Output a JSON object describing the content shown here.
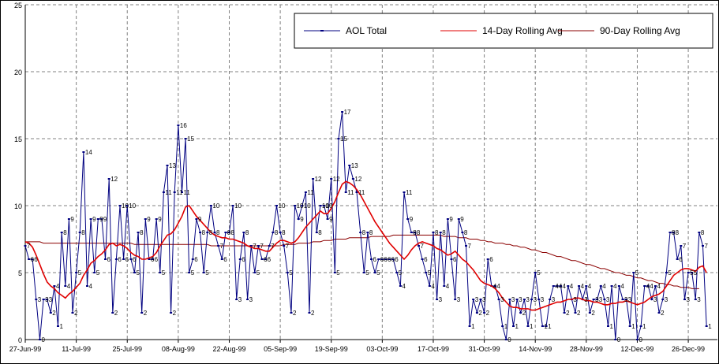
{
  "chart_data": {
    "type": "line",
    "title": "",
    "xlabel": "",
    "ylabel": "",
    "ylim": [
      0,
      25
    ],
    "y_ticks": [
      "0",
      "5",
      "10",
      "15",
      "20",
      "25"
    ],
    "x_ticks": [
      "27-Jun-99",
      "11-Jul-99",
      "25-Jul-99",
      "08-Aug-99",
      "22-Aug-99",
      "05-Sep-99",
      "19-Sep-99",
      "03-Oct-99",
      "17-Oct-99",
      "31-Oct-99",
      "14-Nov-99",
      "28-Nov-99",
      "12-Dec-99",
      "26-Dec-99"
    ],
    "grid": true,
    "legend_position": "top-right",
    "x_start": "1999-06-27",
    "series": [
      {
        "name": "AOL Total",
        "color": "#000080",
        "marker": "dash",
        "data_labels": true,
        "values": [
          7,
          6,
          6,
          3,
          0,
          3,
          3,
          2,
          4,
          1,
          8,
          4,
          9,
          2,
          5,
          8,
          14,
          4,
          9,
          5,
          9,
          9,
          6,
          12,
          2,
          6,
          10,
          6,
          10,
          6,
          5,
          8,
          2,
          9,
          6,
          6,
          9,
          5,
          11,
          13,
          2,
          11,
          16,
          11,
          15,
          5,
          6,
          9,
          8,
          5,
          8,
          10,
          8,
          7,
          6,
          8,
          8,
          10,
          3,
          6,
          8,
          3,
          7,
          5,
          7,
          6,
          6,
          7,
          8,
          10,
          8,
          7,
          5,
          2,
          10,
          9,
          10,
          11,
          2,
          12,
          8,
          10,
          10,
          9,
          12,
          5,
          15,
          17,
          11,
          13,
          12,
          11,
          8,
          5,
          8,
          6,
          5,
          6,
          6,
          6,
          6,
          6,
          5,
          4,
          11,
          9,
          8,
          8,
          7,
          6,
          5,
          4,
          8,
          3,
          8,
          4,
          9,
          6,
          3,
          9,
          8,
          7,
          1,
          3,
          2,
          3,
          2,
          6,
          4,
          4,
          3,
          1,
          0,
          3,
          1,
          3,
          2,
          3,
          1,
          3,
          5,
          3,
          1,
          1,
          3,
          4,
          4,
          4,
          2,
          4,
          3,
          2,
          4,
          3,
          4,
          2,
          3,
          3,
          4,
          3,
          1,
          4,
          0,
          4,
          3,
          3,
          1,
          5,
          0,
          1,
          4,
          4,
          3,
          4,
          2,
          3,
          5,
          8,
          8,
          6,
          7,
          3,
          5,
          5,
          3,
          8,
          7,
          1
        ]
      },
      {
        "name": "14-Day Rolling Avg",
        "color": "#e00000",
        "marker": "none",
        "data_labels": false,
        "values": [
          7.3,
          7.2,
          6.9,
          6.3,
          5.6,
          4.9,
          4.3,
          4.0,
          3.8,
          3.5,
          3.3,
          3.1,
          3.4,
          3.6,
          3.9,
          4.2,
          4.8,
          5.2,
          5.7,
          5.9,
          6.2,
          6.4,
          6.7,
          7.1,
          7.2,
          7.0,
          7.1,
          7.0,
          6.8,
          6.5,
          6.3,
          6.2,
          6.0,
          6.0,
          6.1,
          6.2,
          6.5,
          7.0,
          7.4,
          7.8,
          7.9,
          8.2,
          8.7,
          9.2,
          9.9,
          10.0,
          9.6,
          9.2,
          8.9,
          8.6,
          8.3,
          8.0,
          7.8,
          7.7,
          7.6,
          7.6,
          7.5,
          7.5,
          7.4,
          7.3,
          7.2,
          7.0,
          6.9,
          6.8,
          6.8,
          6.7,
          6.6,
          6.6,
          6.9,
          7.2,
          7.4,
          7.4,
          7.3,
          7.2,
          7.3,
          7.6,
          8.0,
          8.4,
          8.7,
          9.0,
          9.3,
          9.6,
          9.4,
          9.4,
          9.8,
          10.3,
          11.0,
          11.6,
          11.8,
          11.7,
          11.5,
          11.2,
          10.8,
          10.3,
          9.8,
          9.3,
          8.8,
          8.4,
          8.0,
          7.6,
          7.2,
          6.9,
          6.6,
          6.3,
          6.0,
          6.3,
          6.7,
          7.0,
          7.2,
          7.3,
          7.2,
          7.1,
          7.0,
          6.8,
          6.7,
          6.5,
          6.3,
          6.4,
          6.6,
          6.3,
          6.0,
          5.8,
          5.5,
          5.2,
          4.8,
          4.4,
          4.2,
          4.1,
          4.0,
          3.8,
          3.5,
          3.1,
          2.8,
          2.5,
          2.4,
          2.4,
          2.3,
          2.3,
          2.3,
          2.2,
          2.2,
          2.3,
          2.4,
          2.5,
          2.6,
          2.7,
          2.8,
          2.8,
          2.9,
          3.0,
          3.0,
          3.1,
          3.1,
          3.0,
          2.9,
          2.9,
          2.8,
          2.8,
          2.7,
          2.6,
          2.6,
          2.7,
          2.7,
          2.8,
          2.8,
          2.9,
          2.8,
          2.7,
          2.6,
          2.7,
          2.8,
          3.0,
          3.2,
          3.3,
          3.4,
          3.6,
          4.0,
          4.4,
          4.8,
          5.0,
          5.2,
          5.3,
          5.3,
          5.2,
          5.1,
          5.4,
          5.5,
          5.0
        ]
      },
      {
        "name": "90-Day Rolling Avg",
        "color": "#8b0000",
        "marker": "none",
        "data_labels": false,
        "values": [
          7.3,
          7.3,
          7.3,
          7.3,
          7.3,
          7.2,
          7.2,
          7.2,
          7.2,
          7.2,
          7.2,
          7.2,
          7.2,
          7.2,
          7.2,
          7.2,
          7.2,
          7.2,
          7.2,
          7.2,
          7.2,
          7.2,
          7.2,
          7.2,
          7.2,
          7.2,
          7.2,
          7.2,
          7.2,
          7.2,
          7.1,
          7.1,
          7.1,
          7.1,
          7.1,
          7.1,
          7.1,
          7.1,
          7.1,
          7.1,
          7.1,
          7.1,
          7.1,
          7.1,
          7.1,
          7.1,
          7.1,
          7.1,
          7.1,
          7.1,
          7.1,
          7.0,
          7.0,
          7.0,
          7.0,
          7.0,
          7.0,
          7.0,
          7.0,
          7.0,
          7.0,
          7.0,
          7.0,
          7.0,
          7.0,
          7.0,
          7.0,
          7.0,
          7.0,
          7.0,
          7.0,
          7.1,
          7.1,
          7.1,
          7.1,
          7.2,
          7.2,
          7.2,
          7.2,
          7.3,
          7.3,
          7.3,
          7.4,
          7.4,
          7.4,
          7.5,
          7.5,
          7.5,
          7.5,
          7.6,
          7.6,
          7.6,
          7.6,
          7.6,
          7.6,
          7.7,
          7.7,
          7.7,
          7.7,
          7.7,
          7.7,
          7.8,
          7.8,
          7.8,
          7.8,
          7.8,
          7.8,
          7.8,
          7.8,
          7.8,
          7.8,
          7.8,
          7.8,
          7.8,
          7.8,
          7.7,
          7.7,
          7.7,
          7.7,
          7.6,
          7.6,
          7.6,
          7.5,
          7.5,
          7.5,
          7.4,
          7.4,
          7.3,
          7.3,
          7.2,
          7.2,
          7.2,
          7.1,
          7.1,
          7.0,
          7.0,
          6.9,
          6.9,
          6.8,
          6.7,
          6.7,
          6.6,
          6.5,
          6.5,
          6.4,
          6.3,
          6.2,
          6.2,
          6.1,
          6.0,
          5.9,
          5.9,
          5.8,
          5.7,
          5.6,
          5.6,
          5.5,
          5.4,
          5.3,
          5.3,
          5.2,
          5.1,
          5.0,
          5.0,
          4.9,
          4.8,
          4.8,
          4.7,
          4.6,
          4.6,
          4.5,
          4.4,
          4.4,
          4.3,
          4.2,
          4.2,
          4.1,
          4.1,
          4.0,
          4.0,
          3.9,
          3.9,
          3.9,
          3.8,
          3.8,
          3.8
        ]
      }
    ]
  }
}
